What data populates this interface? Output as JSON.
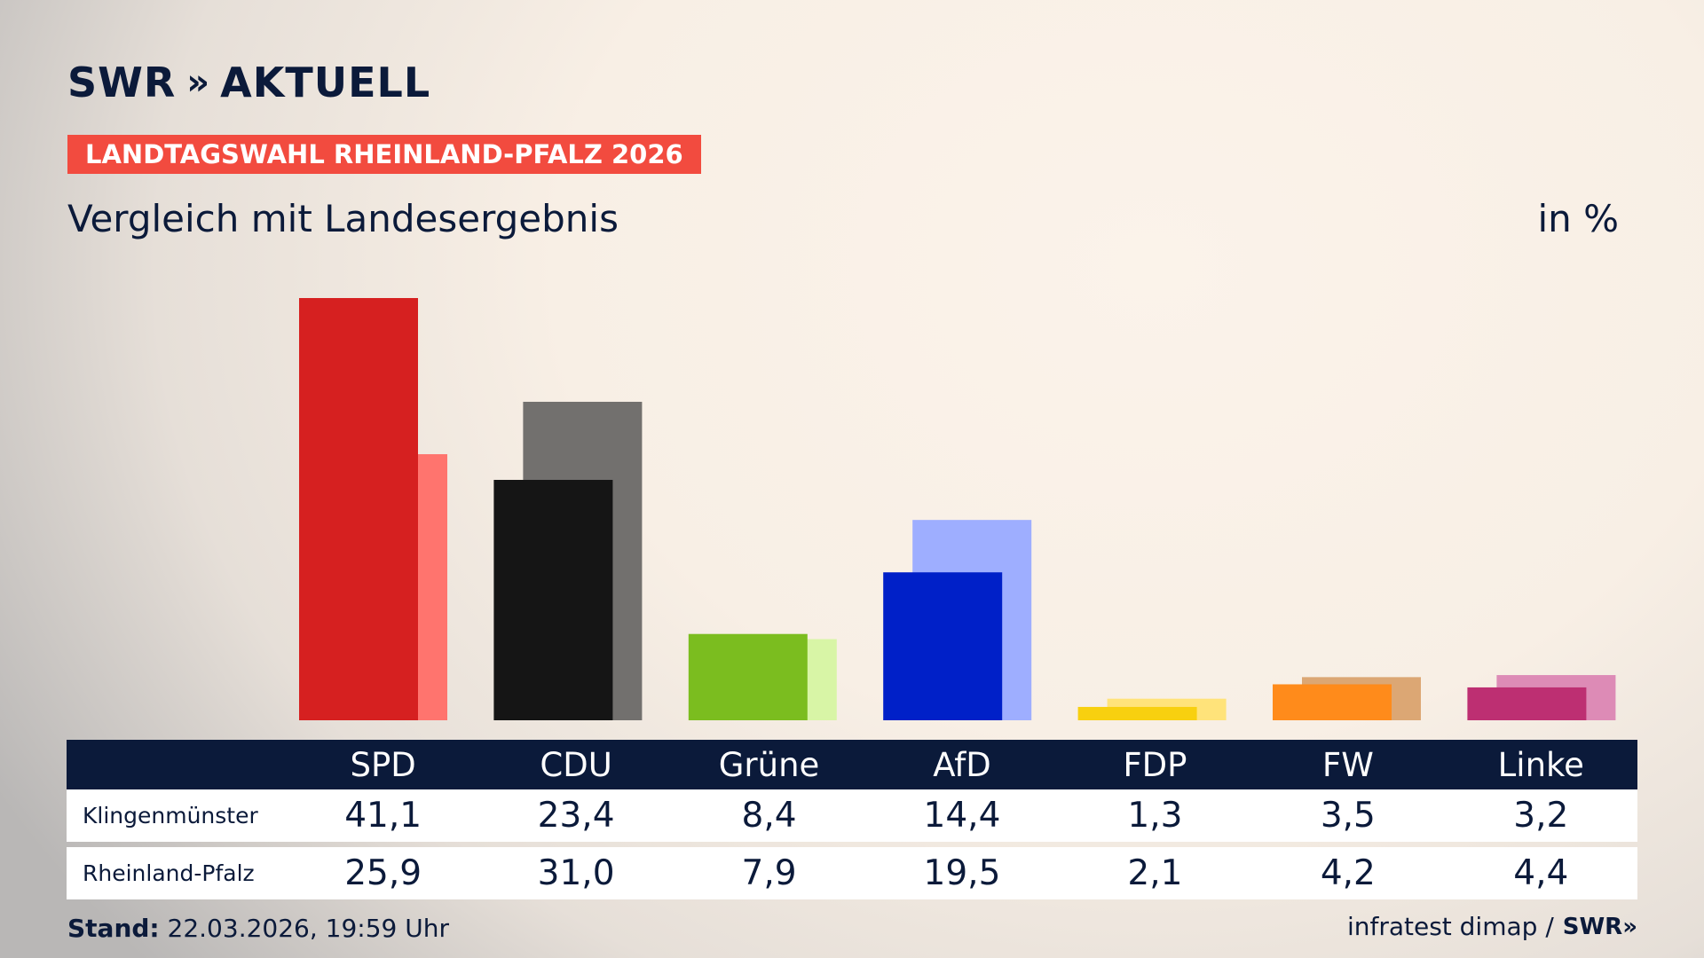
{
  "brand": {
    "logo_text": "SWR",
    "logo_chevrons": "»",
    "section": "AKTUELL"
  },
  "tag": "LANDTAGSWAHL RHEINLAND-PFALZ 2026",
  "subtitle": "Vergleich mit Landesergebnis",
  "unit": "in %",
  "footer": {
    "stand_label": "Stand:",
    "stand_value": "22.03.2026, 19:59 Uhr",
    "source": "infratest dimap /",
    "source_brand": "SWR»"
  },
  "table": {
    "rows": [
      {
        "label": "Klingenmünster",
        "values": [
          "41,1",
          "23,4",
          "8,4",
          "14,4",
          "1,3",
          "3,5",
          "3,2"
        ]
      },
      {
        "label": "Rheinland-Pfalz",
        "values": [
          "25,9",
          "31,0",
          "7,9",
          "19,5",
          "2,1",
          "4,2",
          "4,4"
        ]
      }
    ]
  },
  "chart_data": {
    "type": "bar",
    "title": "Vergleich mit Landesergebnis",
    "ylabel": "in %",
    "ylim": [
      0,
      41.1
    ],
    "grid": false,
    "categories": [
      "SPD",
      "CDU",
      "Grüne",
      "AfD",
      "FDP",
      "FW",
      "Linke"
    ],
    "series": [
      {
        "name": "Klingenmünster",
        "values": [
          41.1,
          23.4,
          8.4,
          14.4,
          1.3,
          3.5,
          3.2
        ]
      },
      {
        "name": "Rheinland-Pfalz",
        "values": [
          25.9,
          31.0,
          7.9,
          19.5,
          2.1,
          4.2,
          4.4
        ]
      }
    ],
    "colors": {
      "primary": [
        "#d62020",
        "#151515",
        "#7bbd1f",
        "#0020c8",
        "#f8d00f",
        "#ff8b1b",
        "#bd2f72"
      ],
      "secondary": [
        "#ff746e",
        "#72706e",
        "#d8f5a6",
        "#9eaeff",
        "#ffe37a",
        "#dca774",
        "#dd8bb6"
      ]
    }
  }
}
